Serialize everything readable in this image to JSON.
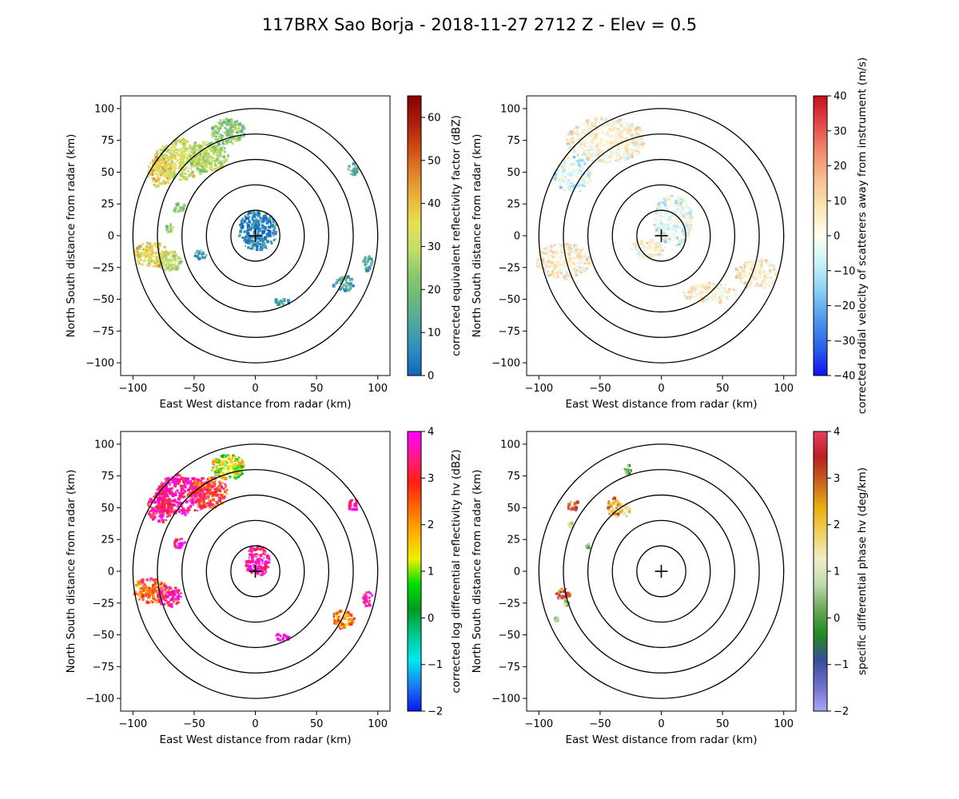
{
  "figure": {
    "title": "117BRX Sao Borja - 2018-11-27 2712 Z -  Elev = 0.5"
  },
  "chart_data": [
    {
      "type": "heatmap",
      "id": "reflectivity",
      "xlabel": "East West distance from radar (km)",
      "ylabel": "North South distance from radar (km)",
      "xlim": [
        -110,
        110
      ],
      "ylim": [
        -110,
        110
      ],
      "xticks": [
        -100,
        -50,
        0,
        50,
        100
      ],
      "yticks": [
        -100,
        -75,
        -50,
        -25,
        0,
        25,
        50,
        75,
        100
      ],
      "range_rings_km": [
        20,
        40,
        60,
        80,
        100
      ],
      "colorbar": {
        "label": "corrected equivalent reflectivity factor (dBZ)",
        "min": 0,
        "max": 65,
        "ticks": [
          0,
          10,
          20,
          30,
          40,
          50,
          60
        ],
        "colormap": [
          "#1166bb",
          "#2a8ec0",
          "#4fa6a0",
          "#6ab97a",
          "#8cc96a",
          "#c5de6a",
          "#e7e053",
          "#eab33a",
          "#e08028",
          "#cc4a12",
          "#aa1c0c",
          "#880000"
        ]
      },
      "echo_regions": [
        {
          "x": -60,
          "y": 60,
          "rx": 22,
          "ry": 16,
          "value": 32
        },
        {
          "x": -38,
          "y": 62,
          "rx": 16,
          "ry": 12,
          "value": 28
        },
        {
          "x": -22,
          "y": 82,
          "rx": 14,
          "ry": 10,
          "value": 22
        },
        {
          "x": -78,
          "y": 50,
          "rx": 10,
          "ry": 12,
          "value": 38
        },
        {
          "x": -85,
          "y": -15,
          "rx": 14,
          "ry": 10,
          "value": 36
        },
        {
          "x": -70,
          "y": -20,
          "rx": 10,
          "ry": 8,
          "value": 30
        },
        {
          "x": -62,
          "y": 22,
          "rx": 5,
          "ry": 4,
          "value": 24
        },
        {
          "x": -70,
          "y": 6,
          "rx": 4,
          "ry": 4,
          "value": 26
        },
        {
          "x": 80,
          "y": 52,
          "rx": 4,
          "ry": 5,
          "value": 14
        },
        {
          "x": 72,
          "y": -38,
          "rx": 9,
          "ry": 7,
          "value": 12
        },
        {
          "x": 92,
          "y": -22,
          "rx": 4,
          "ry": 6,
          "value": 10
        },
        {
          "x": 22,
          "y": -52,
          "rx": 6,
          "ry": 3,
          "value": 10
        },
        {
          "x": -45,
          "y": -15,
          "rx": 5,
          "ry": 4,
          "value": 8
        },
        {
          "x": 2,
          "y": 4,
          "rx": 16,
          "ry": 16,
          "value": 4
        }
      ]
    },
    {
      "type": "heatmap",
      "id": "velocity",
      "xlabel": "East West distance from radar (km)",
      "ylabel": "North South distance from radar (km)",
      "xlim": [
        -110,
        110
      ],
      "ylim": [
        -110,
        110
      ],
      "xticks": [
        -100,
        -50,
        0,
        50,
        100
      ],
      "yticks": [
        -100,
        -75,
        -50,
        -25,
        0,
        25,
        50,
        75,
        100
      ],
      "range_rings_km": [
        20,
        40,
        60,
        80,
        100
      ],
      "colorbar": {
        "label": "corrected radial velocity of scatterers away from instrument (m/s)",
        "min": -40,
        "max": 40,
        "ticks": [
          -40,
          -30,
          -20,
          -10,
          0,
          10,
          20,
          30,
          40
        ],
        "colormap": [
          "#1010ee",
          "#2a62e8",
          "#4d98ee",
          "#88cdf5",
          "#c8f2f8",
          "#fffff0",
          "#fce6b4",
          "#f8c090",
          "#f28a6c",
          "#e44848",
          "#c4101c"
        ]
      },
      "echo_regions": [
        {
          "x": -45,
          "y": 75,
          "rx": 32,
          "ry": 18,
          "value": 4
        },
        {
          "x": -72,
          "y": 48,
          "rx": 16,
          "ry": 14,
          "value": -4
        },
        {
          "x": -80,
          "y": -20,
          "rx": 22,
          "ry": 14,
          "value": 4
        },
        {
          "x": 78,
          "y": -30,
          "rx": 18,
          "ry": 12,
          "value": 5
        },
        {
          "x": 10,
          "y": 12,
          "rx": 16,
          "ry": 20,
          "value": -3
        },
        {
          "x": 40,
          "y": -45,
          "rx": 22,
          "ry": 8,
          "value": 4
        },
        {
          "x": -10,
          "y": -10,
          "rx": 14,
          "ry": 8,
          "value": 3
        }
      ]
    },
    {
      "type": "heatmap",
      "id": "differential_reflectivity",
      "xlabel": "East West distance from radar (km)",
      "ylabel": "North South distance from radar (km)",
      "xlim": [
        -110,
        110
      ],
      "ylim": [
        -110,
        110
      ],
      "xticks": [
        -100,
        -50,
        0,
        50,
        100
      ],
      "yticks": [
        -100,
        -75,
        -50,
        -25,
        0,
        25,
        50,
        75,
        100
      ],
      "range_rings_km": [
        20,
        40,
        60,
        80,
        100
      ],
      "colorbar": {
        "label": "corrected log differential reflectivity hv (dBZ)",
        "min": -2,
        "max": 4,
        "ticks": [
          -2,
          -1,
          0,
          1,
          2,
          3,
          4
        ],
        "colormap": [
          "#0b14ee",
          "#1a7cf0",
          "#00e8f0",
          "#00c890",
          "#009a20",
          "#00e000",
          "#eef000",
          "#ffb000",
          "#ff6a00",
          "#ff1f10",
          "#ff1a8a",
          "#ff00ff"
        ]
      },
      "echo_regions": [
        {
          "x": -60,
          "y": 60,
          "rx": 22,
          "ry": 16,
          "value": 3.6
        },
        {
          "x": -38,
          "y": 62,
          "rx": 16,
          "ry": 12,
          "value": 2.8
        },
        {
          "x": -22,
          "y": 82,
          "rx": 14,
          "ry": 10,
          "value": 1.2
        },
        {
          "x": -78,
          "y": 50,
          "rx": 10,
          "ry": 12,
          "value": 3.4
        },
        {
          "x": -85,
          "y": -15,
          "rx": 14,
          "ry": 10,
          "value": 2.5
        },
        {
          "x": -70,
          "y": -20,
          "rx": 10,
          "ry": 8,
          "value": 3.5
        },
        {
          "x": -62,
          "y": 22,
          "rx": 5,
          "ry": 4,
          "value": 3.7
        },
        {
          "x": 80,
          "y": 52,
          "rx": 4,
          "ry": 5,
          "value": 3.8
        },
        {
          "x": 72,
          "y": -38,
          "rx": 9,
          "ry": 7,
          "value": 2.2
        },
        {
          "x": 92,
          "y": -22,
          "rx": 4,
          "ry": 6,
          "value": 3.5
        },
        {
          "x": 22,
          "y": -52,
          "rx": 6,
          "ry": 3,
          "value": 3.8
        },
        {
          "x": 2,
          "y": 8,
          "rx": 10,
          "ry": 12,
          "value": 3.7
        }
      ]
    },
    {
      "type": "heatmap",
      "id": "specific_differential_phase",
      "xlabel": "East West distance from radar (km)",
      "ylabel": "North South distance from radar (km)",
      "xlim": [
        -110,
        110
      ],
      "ylim": [
        -110,
        110
      ],
      "xticks": [
        -100,
        -50,
        0,
        50,
        100
      ],
      "yticks": [
        -100,
        -75,
        -50,
        -25,
        0,
        25,
        50,
        75,
        100
      ],
      "range_rings_km": [
        20,
        40,
        60,
        80,
        100
      ],
      "colorbar": {
        "label": "specific differential phase hv (deg/km)",
        "min": -2,
        "max": 4,
        "ticks": [
          -2,
          -1,
          0,
          1,
          2,
          3,
          4
        ],
        "colormap": [
          "#a8a8f4",
          "#6e6ecc",
          "#3a4e9a",
          "#1e8a1e",
          "#6aa858",
          "#c0dcb0",
          "#f0eec8",
          "#f0d060",
          "#e8b010",
          "#c86420",
          "#b82020",
          "#e84060"
        ]
      },
      "echo_regions": [
        {
          "x": -38,
          "y": 50,
          "rx": 6,
          "ry": 8,
          "value": 2.4
        },
        {
          "x": -28,
          "y": 48,
          "rx": 3,
          "ry": 5,
          "value": 1.6
        },
        {
          "x": -72,
          "y": 52,
          "rx": 5,
          "ry": 4,
          "value": 3.0
        },
        {
          "x": -80,
          "y": -18,
          "rx": 6,
          "ry": 5,
          "value": 3.2
        },
        {
          "x": -28,
          "y": 80,
          "rx": 3,
          "ry": 5,
          "value": 0.3
        },
        {
          "x": -74,
          "y": 36,
          "rx": 2,
          "ry": 3,
          "value": 1.2
        },
        {
          "x": -86,
          "y": -38,
          "rx": 2,
          "ry": 2,
          "value": 0.2
        },
        {
          "x": -60,
          "y": 20,
          "rx": 2,
          "ry": 2,
          "value": 0.6
        },
        {
          "x": -77,
          "y": -25,
          "rx": 2,
          "ry": 3,
          "value": 0.4
        }
      ]
    }
  ]
}
